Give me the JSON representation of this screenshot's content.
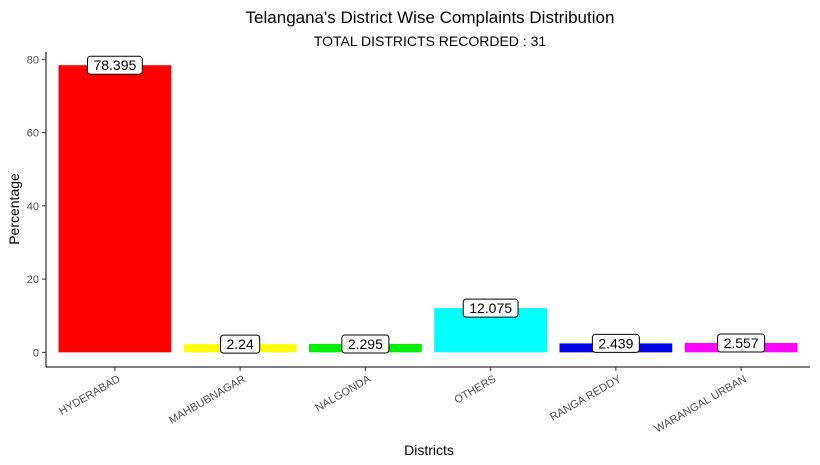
{
  "chart_data": {
    "type": "bar",
    "title": "Telangana's District Wise Complaints Distribution",
    "subtitle": "TOTAL DISTRICTS RECORDED : 31",
    "xlabel": "Districts",
    "ylabel": "Percentage",
    "ylim": [
      -4,
      82
    ],
    "yticks": [
      0,
      20,
      40,
      60,
      80
    ],
    "grid": false,
    "legend": "none",
    "categories": [
      "HYDERABAD",
      "MAHBUBNAGAR",
      "NALGONDA",
      "OTHERS",
      "RANGA REDDY",
      "WARANGAL URBAN"
    ],
    "values": [
      78.395,
      2.24,
      2.295,
      12.075,
      2.439,
      2.557
    ],
    "data_labels": [
      "78.395",
      "2.24",
      "2.295",
      "12.075",
      "2.439",
      "2.557"
    ],
    "colors": [
      "#ff0000",
      "#ffff00",
      "#00ee00",
      "#00ffff",
      "#0000ee",
      "#ff00ff"
    ]
  }
}
